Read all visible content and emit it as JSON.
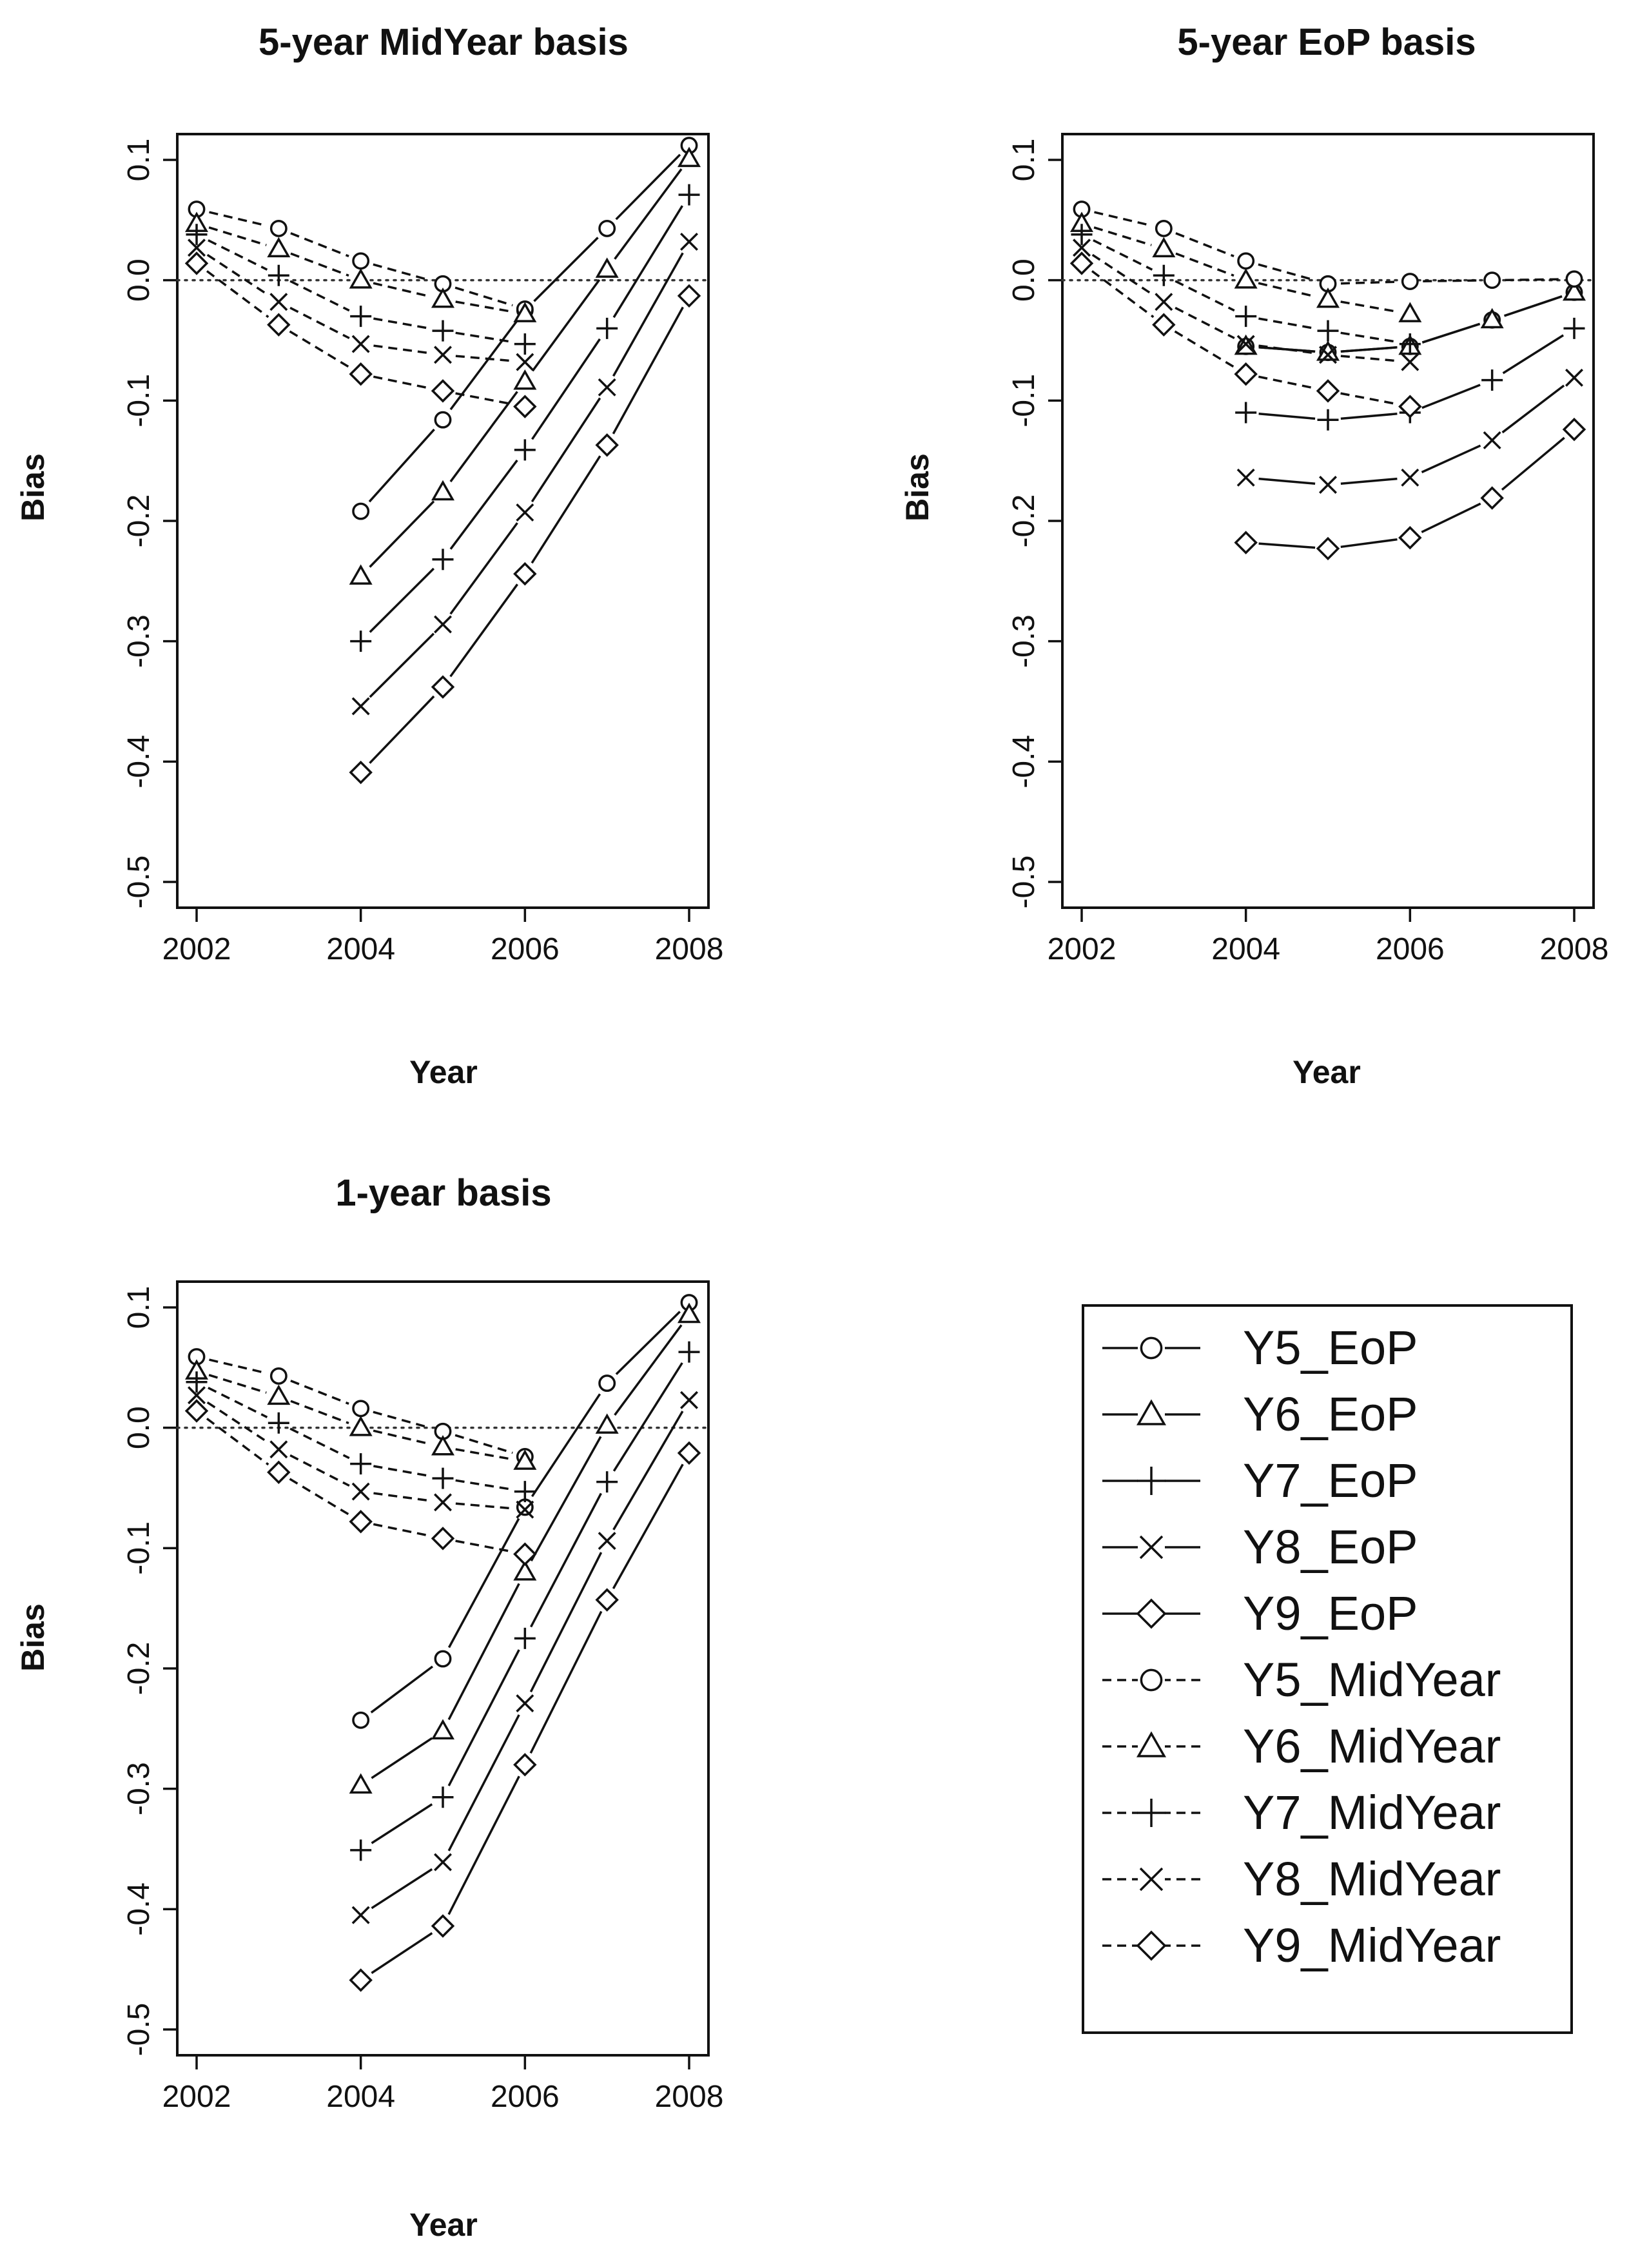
{
  "chart_data": [
    {
      "type": "line",
      "title": "5-year MidYear basis",
      "xlabel": "Year",
      "ylabel": "Bias",
      "xlim": [
        2002,
        2008
      ],
      "ylim": [
        -0.5,
        0.1
      ],
      "xticks": [
        2002,
        2004,
        2006,
        2008
      ],
      "yticks": [
        -0.5,
        -0.4,
        -0.3,
        -0.2,
        -0.1,
        0.0,
        0.1
      ],
      "ytick_labels": [
        "-0.5",
        "-0.4",
        "-0.3",
        "-0.2",
        "-0.1",
        "0.0",
        "0.1"
      ],
      "reference_line": 0.0,
      "series": [
        {
          "name": "Y5_EoP",
          "x": [
            2004,
            2005,
            2006,
            2007,
            2008
          ],
          "values": [
            -0.192,
            -0.116,
            -0.025,
            0.043,
            0.112
          ]
        },
        {
          "name": "Y6_EoP",
          "x": [
            2004,
            2005,
            2006,
            2007,
            2008
          ],
          "values": [
            -0.246,
            -0.176,
            -0.084,
            0.009,
            0.101
          ]
        },
        {
          "name": "Y7_EoP",
          "x": [
            2004,
            2005,
            2006,
            2007,
            2008
          ],
          "values": [
            -0.3,
            -0.232,
            -0.141,
            -0.04,
            0.071
          ]
        },
        {
          "name": "Y8_EoP",
          "x": [
            2004,
            2005,
            2006,
            2007,
            2008
          ],
          "values": [
            -0.354,
            -0.286,
            -0.193,
            -0.089,
            0.032
          ]
        },
        {
          "name": "Y9_EoP",
          "x": [
            2004,
            2005,
            2006,
            2007,
            2008
          ],
          "values": [
            -0.409,
            -0.338,
            -0.244,
            -0.137,
            -0.013
          ]
        },
        {
          "name": "Y5_MidYear",
          "x": [
            2002,
            2003,
            2004,
            2005,
            2006
          ],
          "values": [
            0.059,
            0.043,
            0.016,
            -0.003,
            -0.024
          ]
        },
        {
          "name": "Y6_MidYear",
          "x": [
            2002,
            2003,
            2004,
            2005,
            2006
          ],
          "values": [
            0.047,
            0.026,
            0.0,
            -0.016,
            -0.028
          ]
        },
        {
          "name": "Y7_MidYear",
          "x": [
            2002,
            2003,
            2004,
            2005,
            2006
          ],
          "values": [
            0.038,
            0.004,
            -0.03,
            -0.042,
            -0.053
          ]
        },
        {
          "name": "Y8_MidYear",
          "x": [
            2002,
            2003,
            2004,
            2005,
            2006
          ],
          "values": [
            0.027,
            -0.018,
            -0.053,
            -0.062,
            -0.068
          ]
        },
        {
          "name": "Y9_MidYear",
          "x": [
            2002,
            2003,
            2004,
            2005,
            2006
          ],
          "values": [
            0.014,
            -0.037,
            -0.078,
            -0.092,
            -0.105
          ]
        }
      ]
    },
    {
      "type": "line",
      "title": "5-year EoP basis",
      "xlabel": "Year",
      "ylabel": "Bias",
      "xlim": [
        2002,
        2008
      ],
      "ylim": [
        -0.5,
        0.1
      ],
      "xticks": [
        2002,
        2004,
        2006,
        2008
      ],
      "yticks": [
        -0.5,
        -0.4,
        -0.3,
        -0.2,
        -0.1,
        0.0,
        0.1
      ],
      "ytick_labels": [
        "-0.5",
        "-0.4",
        "-0.3",
        "-0.2",
        "-0.1",
        "0.0",
        "0.1"
      ],
      "reference_line": 0.0,
      "series": [
        {
          "name": "Y5_EoP",
          "x": [
            2004,
            2005,
            2006,
            2007,
            2008
          ],
          "values": [
            -0.055,
            -0.06,
            -0.055,
            -0.033,
            -0.01
          ]
        },
        {
          "name": "Y6_EoP",
          "x": [
            2004,
            2005,
            2006,
            2007,
            2008
          ],
          "values": [
            -0.055,
            -0.06,
            -0.055,
            -0.033,
            -0.01
          ]
        },
        {
          "name": "Y7_EoP",
          "x": [
            2004,
            2005,
            2006,
            2007,
            2008
          ],
          "values": [
            -0.11,
            -0.116,
            -0.11,
            -0.083,
            -0.04
          ]
        },
        {
          "name": "Y8_EoP",
          "x": [
            2004,
            2005,
            2006,
            2007,
            2008
          ],
          "values": [
            -0.164,
            -0.17,
            -0.164,
            -0.133,
            -0.081
          ]
        },
        {
          "name": "Y9_EoP",
          "x": [
            2004,
            2005,
            2006,
            2007,
            2008
          ],
          "values": [
            -0.218,
            -0.223,
            -0.214,
            -0.181,
            -0.124
          ]
        },
        {
          "name": "Y5_MidYear",
          "x": [
            2002,
            2003,
            2004,
            2005,
            2006,
            2007,
            2008
          ],
          "values": [
            0.059,
            0.043,
            0.016,
            -0.003,
            -0.001,
            0.0,
            0.001
          ]
        },
        {
          "name": "Y6_MidYear",
          "x": [
            2002,
            2003,
            2004,
            2005,
            2006
          ],
          "values": [
            0.047,
            0.026,
            0.0,
            -0.016,
            -0.028
          ]
        },
        {
          "name": "Y7_MidYear",
          "x": [
            2002,
            2003,
            2004,
            2005,
            2006
          ],
          "values": [
            0.038,
            0.004,
            -0.03,
            -0.042,
            -0.053
          ]
        },
        {
          "name": "Y8_MidYear",
          "x": [
            2002,
            2003,
            2004,
            2005,
            2006
          ],
          "values": [
            0.027,
            -0.018,
            -0.053,
            -0.062,
            -0.068
          ]
        },
        {
          "name": "Y9_MidYear",
          "x": [
            2002,
            2003,
            2004,
            2005,
            2006
          ],
          "values": [
            0.014,
            -0.037,
            -0.078,
            -0.092,
            -0.105
          ]
        }
      ]
    },
    {
      "type": "line",
      "title": "1-year basis",
      "xlabel": "Year",
      "ylabel": "Bias",
      "xlim": [
        2002,
        2008
      ],
      "ylim": [
        -0.5,
        0.1
      ],
      "xticks": [
        2002,
        2004,
        2006,
        2008
      ],
      "yticks": [
        -0.5,
        -0.4,
        -0.3,
        -0.2,
        -0.1,
        0.0,
        0.1
      ],
      "ytick_labels": [
        "-0.5",
        "-0.4",
        "-0.3",
        "-0.2",
        "-0.1",
        "0.0",
        "0.1"
      ],
      "reference_line": 0.0,
      "series": [
        {
          "name": "Y5_EoP",
          "x": [
            2004,
            2005,
            2006,
            2007,
            2008
          ],
          "values": [
            -0.243,
            -0.192,
            -0.066,
            0.037,
            0.104
          ]
        },
        {
          "name": "Y6_EoP",
          "x": [
            2004,
            2005,
            2006,
            2007,
            2008
          ],
          "values": [
            -0.297,
            -0.252,
            -0.12,
            0.002,
            0.094
          ]
        },
        {
          "name": "Y7_EoP",
          "x": [
            2004,
            2005,
            2006,
            2007,
            2008
          ],
          "values": [
            -0.351,
            -0.307,
            -0.175,
            -0.045,
            0.063
          ]
        },
        {
          "name": "Y8_EoP",
          "x": [
            2004,
            2005,
            2006,
            2007,
            2008
          ],
          "values": [
            -0.405,
            -0.361,
            -0.229,
            -0.094,
            0.023
          ]
        },
        {
          "name": "Y9_EoP",
          "x": [
            2004,
            2005,
            2006,
            2007,
            2008
          ],
          "values": [
            -0.459,
            -0.414,
            -0.28,
            -0.143,
            -0.021
          ]
        },
        {
          "name": "Y5_MidYear",
          "x": [
            2002,
            2003,
            2004,
            2005,
            2006
          ],
          "values": [
            0.059,
            0.043,
            0.016,
            -0.003,
            -0.024
          ]
        },
        {
          "name": "Y6_MidYear",
          "x": [
            2002,
            2003,
            2004,
            2005,
            2006
          ],
          "values": [
            0.047,
            0.026,
            0.0,
            -0.016,
            -0.028
          ]
        },
        {
          "name": "Y7_MidYear",
          "x": [
            2002,
            2003,
            2004,
            2005,
            2006
          ],
          "values": [
            0.038,
            0.004,
            -0.03,
            -0.042,
            -0.053
          ]
        },
        {
          "name": "Y8_MidYear",
          "x": [
            2002,
            2003,
            2004,
            2005,
            2006
          ],
          "values": [
            0.027,
            -0.018,
            -0.053,
            -0.062,
            -0.068
          ]
        },
        {
          "name": "Y9_MidYear",
          "x": [
            2002,
            2003,
            2004,
            2005,
            2006
          ],
          "values": [
            0.014,
            -0.037,
            -0.078,
            -0.092,
            -0.105
          ]
        }
      ]
    }
  ],
  "legend": {
    "items": [
      {
        "label": "Y5_EoP",
        "line": "solid",
        "marker": "circle"
      },
      {
        "label": "Y6_EoP",
        "line": "solid",
        "marker": "triangle"
      },
      {
        "label": "Y7_EoP",
        "line": "solid",
        "marker": "plus"
      },
      {
        "label": "Y8_EoP",
        "line": "solid",
        "marker": "cross"
      },
      {
        "label": "Y9_EoP",
        "line": "solid",
        "marker": "diamond"
      },
      {
        "label": "Y5_MidYear",
        "line": "dashed",
        "marker": "circle"
      },
      {
        "label": "Y6_MidYear",
        "line": "dashed",
        "marker": "triangle"
      },
      {
        "label": "Y7_MidYear",
        "line": "dashed",
        "marker": "plus"
      },
      {
        "label": "Y8_MidYear",
        "line": "dashed",
        "marker": "cross"
      },
      {
        "label": "Y9_MidYear",
        "line": "dashed",
        "marker": "diamond"
      }
    ]
  },
  "series_markers": {
    "Y5": "circle",
    "Y6": "triangle",
    "Y7": "plus",
    "Y8": "cross",
    "Y9": "diamond"
  },
  "colors": {
    "ink": "#111111",
    "background": "#ffffff",
    "zero_line": "#333333"
  }
}
